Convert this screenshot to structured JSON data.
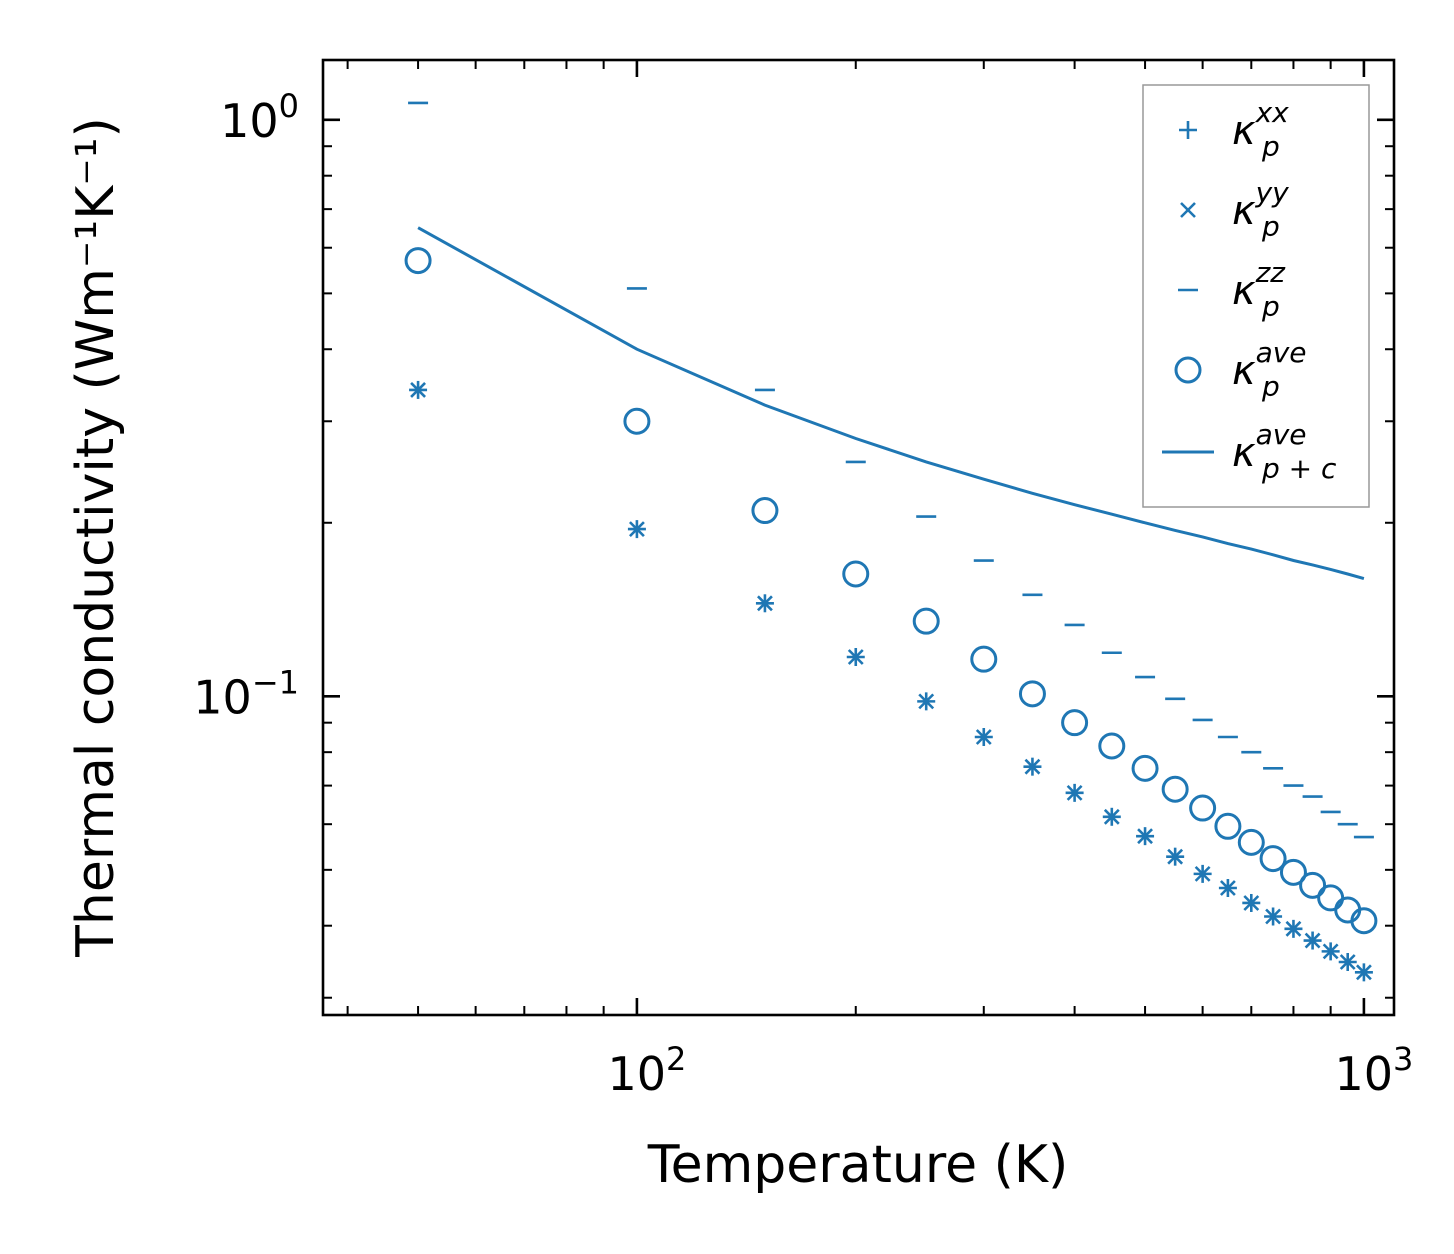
{
  "chart_data": {
    "type": "scatter",
    "xscale": "log",
    "yscale": "log",
    "xlabel": "Temperature (K)",
    "ylabel": "Thermal conductivity (Wm⁻¹K⁻¹)",
    "xlim": [
      37,
      1100
    ],
    "ylim": [
      0.028,
      1.27
    ],
    "x_tick_labels": [
      {
        "value": 100,
        "base": "10",
        "exp": "2"
      },
      {
        "value": 1000,
        "base": "10",
        "exp": "3"
      }
    ],
    "y_tick_labels": [
      {
        "value": 1,
        "base": "10",
        "exp": "0"
      },
      {
        "value": 0.1,
        "base": "10",
        "exp": "−1"
      }
    ],
    "color": "#1f77b4",
    "x": [
      50,
      100,
      150,
      200,
      250,
      300,
      350,
      400,
      450,
      500,
      550,
      600,
      650,
      700,
      750,
      800,
      850,
      900,
      950,
      1000
    ],
    "series": [
      {
        "name": "kappa_p_xx",
        "legend_base": "κ",
        "legend_sub": "p",
        "legend_sup": "xx",
        "marker": "plus",
        "values": [
          0.34,
          0.195,
          0.145,
          0.117,
          0.098,
          0.085,
          0.0755,
          0.068,
          0.0618,
          0.0572,
          0.0527,
          0.0492,
          0.0465,
          0.0438,
          0.0415,
          0.0395,
          0.0377,
          0.0361,
          0.0346,
          0.0332
        ]
      },
      {
        "name": "kappa_p_yy",
        "legend_base": "κ",
        "legend_sub": "p",
        "legend_sup": "yy",
        "marker": "x",
        "values": [
          0.34,
          0.195,
          0.145,
          0.117,
          0.098,
          0.085,
          0.0755,
          0.068,
          0.0618,
          0.0572,
          0.0527,
          0.0492,
          0.0465,
          0.0438,
          0.0415,
          0.0395,
          0.0377,
          0.0361,
          0.0346,
          0.0332
        ]
      },
      {
        "name": "kappa_p_zz",
        "legend_base": "κ",
        "legend_sub": "p",
        "legend_sup": "zz",
        "marker": "hline",
        "values": [
          1.07,
          0.51,
          0.34,
          0.255,
          0.205,
          0.172,
          0.15,
          0.133,
          0.119,
          0.108,
          0.099,
          0.091,
          0.085,
          0.08,
          0.075,
          0.07,
          0.067,
          0.063,
          0.06,
          0.057
        ]
      },
      {
        "name": "kappa_p_ave",
        "legend_base": "κ",
        "legend_sub": "p",
        "legend_sup": "ave",
        "marker": "circle",
        "values": [
          0.57,
          0.3,
          0.21,
          0.163,
          0.135,
          0.116,
          0.101,
          0.09,
          0.082,
          0.075,
          0.069,
          0.064,
          0.0595,
          0.0558,
          0.0523,
          0.0495,
          0.047,
          0.0447,
          0.0426,
          0.0408
        ]
      },
      {
        "name": "kappa_pc_ave",
        "legend_base": "κ",
        "legend_sub": "p + c",
        "legend_sup": "ave",
        "marker": "line",
        "values": [
          0.65,
          0.4,
          0.32,
          0.28,
          0.255,
          0.238,
          0.225,
          0.215,
          0.207,
          0.2,
          0.194,
          0.189,
          0.184,
          0.18,
          0.176,
          0.172,
          0.169,
          0.166,
          0.163,
          0.16
        ]
      }
    ],
    "legend_position": "upper-right",
    "grid": false
  }
}
